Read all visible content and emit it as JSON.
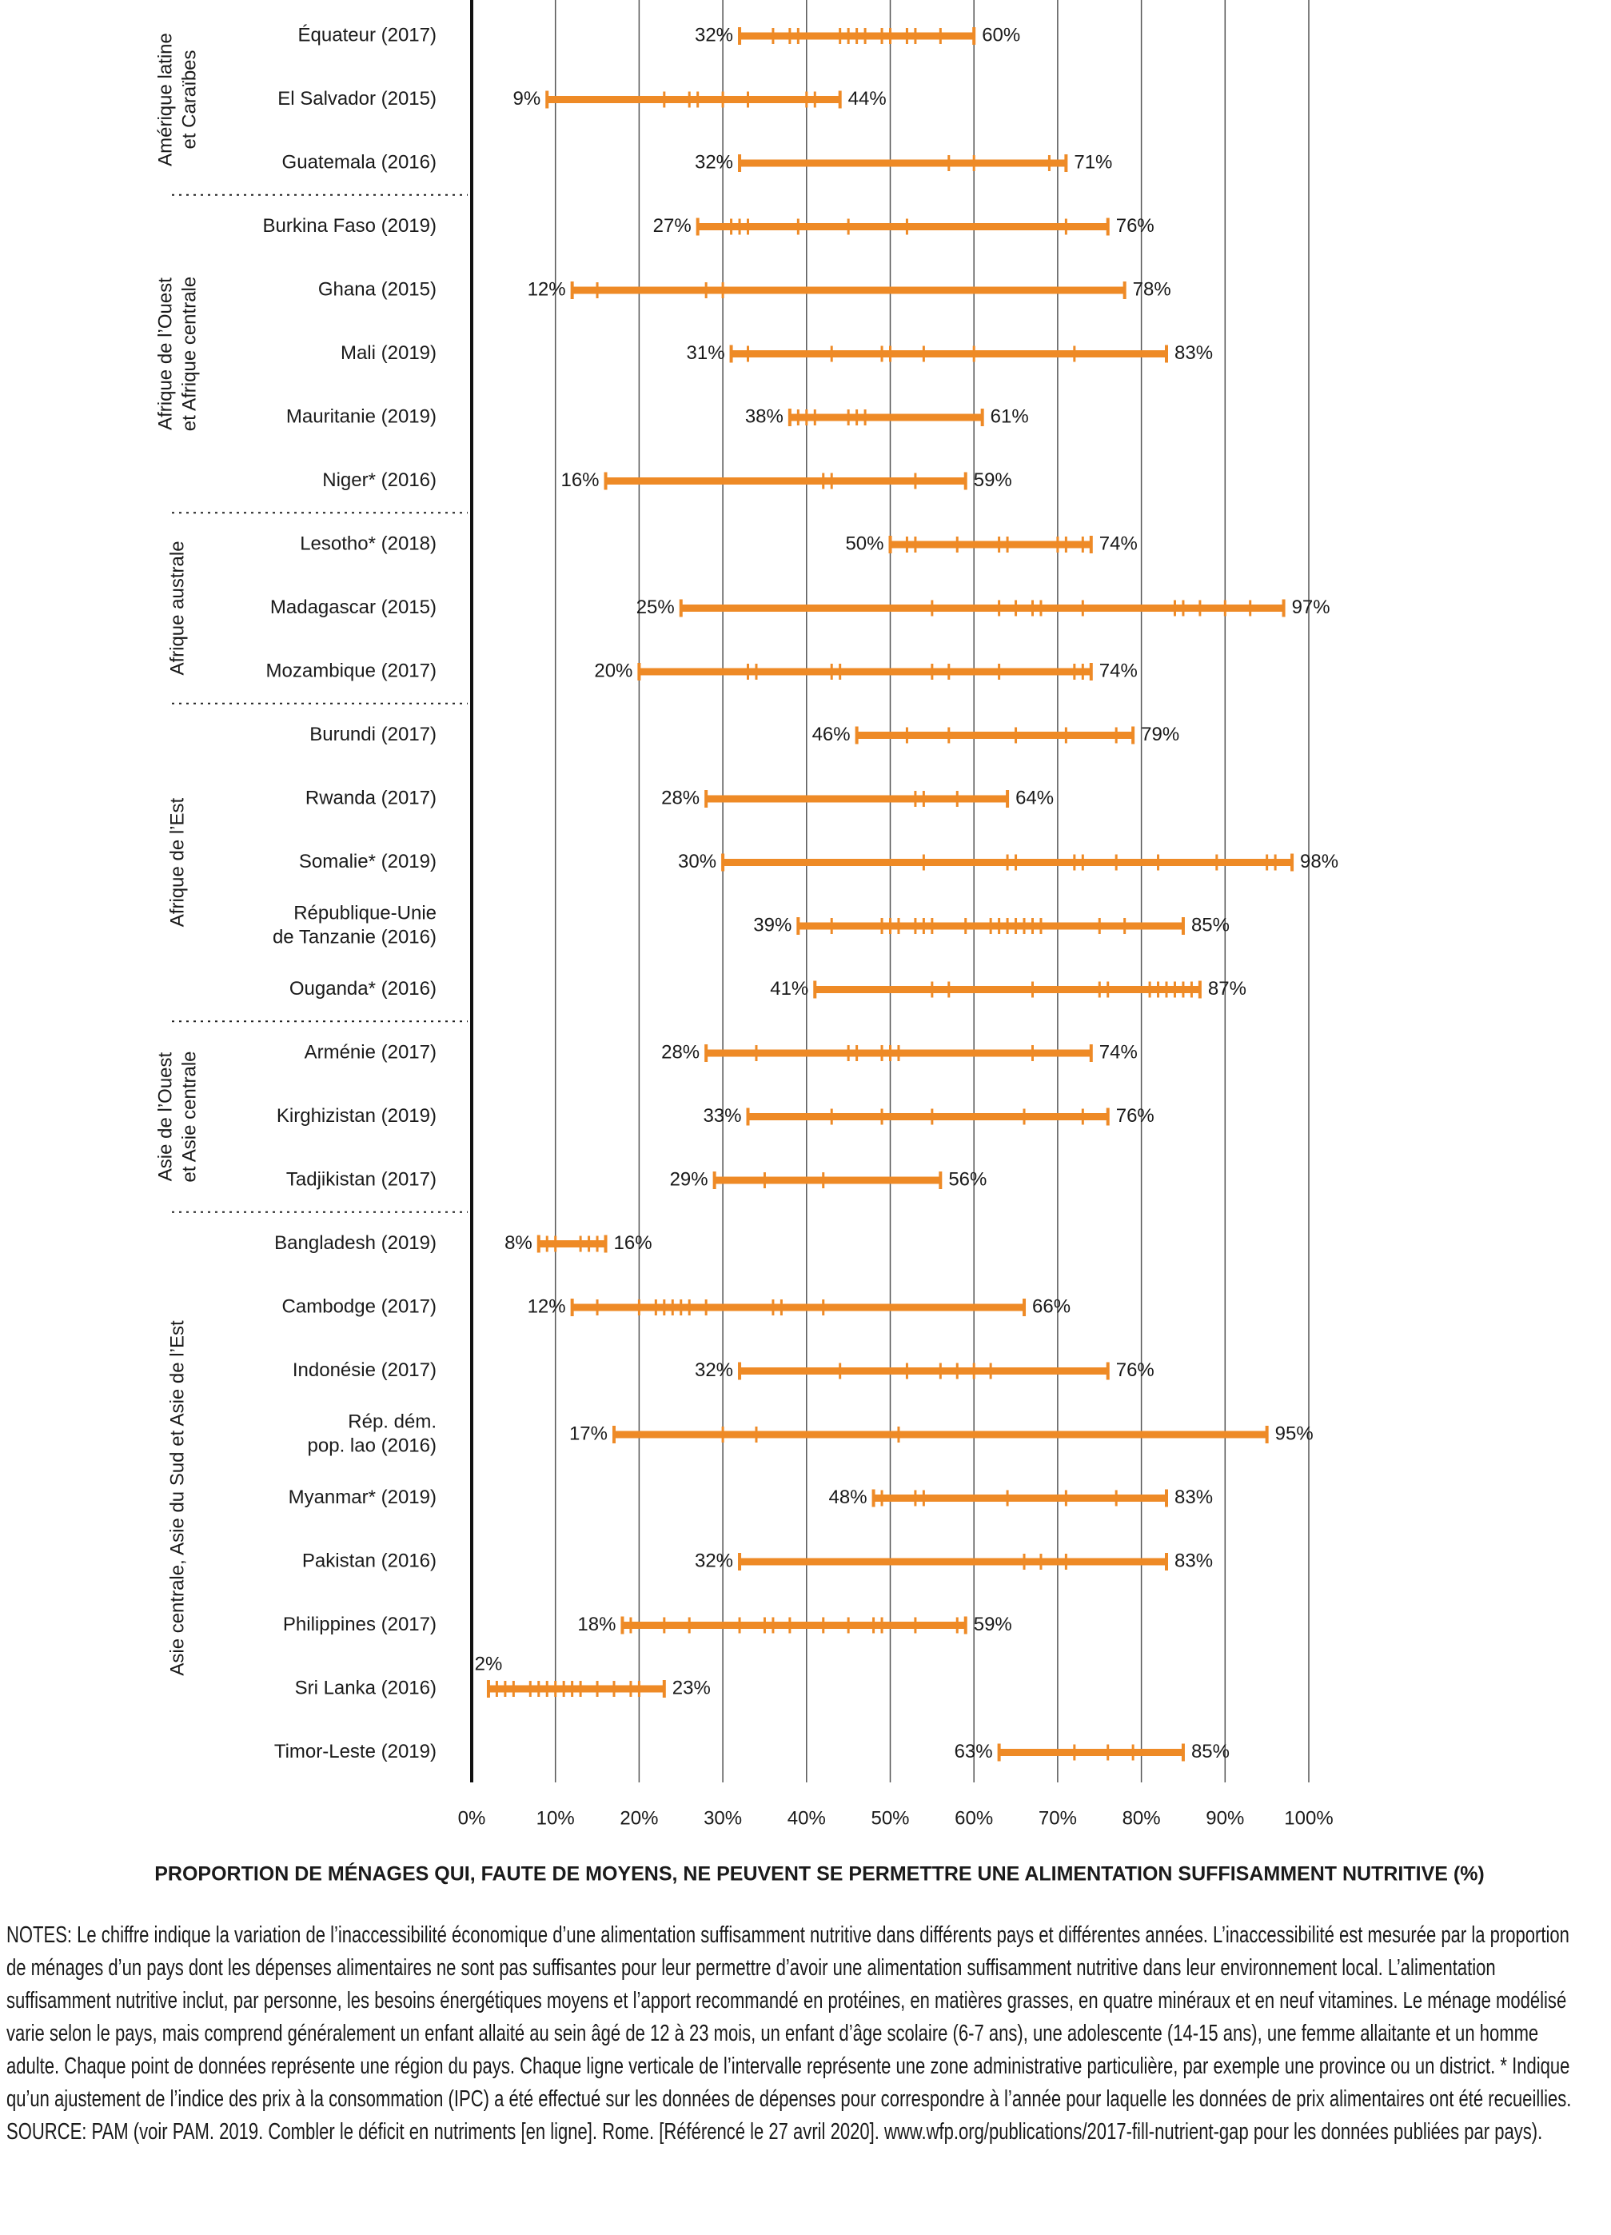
{
  "chart_data": {
    "type": "range",
    "xlabel": "PROPORTION DE MÉNAGES QUI, FAUTE DE MOYENS, NE PEUVENT SE PERMETTRE UNE ALIMENTATION SUFFISAMMENT NUTRITIVE (%)",
    "xlim": [
      0,
      100
    ],
    "xticks": [
      {
        "value": 0,
        "label": "0%"
      },
      {
        "value": 10,
        "label": "10%"
      },
      {
        "value": 20,
        "label": "20%"
      },
      {
        "value": 30,
        "label": "30%"
      },
      {
        "value": 40,
        "label": "40%"
      },
      {
        "value": 50,
        "label": "50%"
      },
      {
        "value": 60,
        "label": "60%"
      },
      {
        "value": 70,
        "label": "70%"
      },
      {
        "value": 80,
        "label": "80%"
      },
      {
        "value": 90,
        "label": "90%"
      },
      {
        "value": 100,
        "label": "100%"
      }
    ],
    "grid": true,
    "color": "#ee8a26",
    "groups": [
      {
        "name": [
          "Amérique latine",
          "et Caraïbes"
        ],
        "rows": [
          {
            "label": "Équateur (2017)",
            "values": [
              32,
              60
            ],
            "value_labels": [
              "32%",
              "60%"
            ],
            "ticks": [
              36,
              38,
              39,
              44,
              45,
              46,
              47,
              49,
              50,
              52,
              53,
              56
            ]
          },
          {
            "label": "El Salvador (2015)",
            "values": [
              9,
              44
            ],
            "value_labels": [
              "9%",
              "44%"
            ],
            "ticks": [
              23,
              26,
              27,
              30,
              33,
              40,
              41
            ]
          },
          {
            "label": "Guatemala (2016)",
            "values": [
              32,
              71
            ],
            "value_labels": [
              "32%",
              "71%"
            ],
            "ticks": [
              57,
              60,
              69
            ]
          }
        ]
      },
      {
        "name": [
          "Afrique de l’Ouest",
          "et Afrique centrale"
        ],
        "rows": [
          {
            "label": "Burkina Faso (2019)",
            "values": [
              27,
              76
            ],
            "value_labels": [
              "27%",
              "76%"
            ],
            "ticks": [
              31,
              32,
              33,
              39,
              45,
              52,
              71
            ]
          },
          {
            "label": "Ghana (2015)",
            "values": [
              12,
              78
            ],
            "value_labels": [
              "12%",
              "78%"
            ],
            "ticks": [
              15,
              28,
              30
            ]
          },
          {
            "label": "Mali (2019)",
            "values": [
              31,
              83
            ],
            "value_labels": [
              "31%",
              "83%"
            ],
            "ticks": [
              33,
              43,
              49,
              50,
              54,
              60,
              72
            ]
          },
          {
            "label": "Mauritanie (2019)",
            "values": [
              38,
              61
            ],
            "value_labels": [
              "38%",
              "61%"
            ],
            "ticks": [
              39,
              40,
              41,
              45,
              46,
              47
            ]
          },
          {
            "label": "Niger* (2016)",
            "values": [
              16,
              59
            ],
            "value_labels": [
              "16%",
              "59%"
            ],
            "ticks": [
              42,
              43,
              53
            ]
          }
        ]
      },
      {
        "name": [
          "Afrique australe"
        ],
        "rows": [
          {
            "label": "Lesotho* (2018)",
            "values": [
              50,
              74
            ],
            "value_labels": [
              "50%",
              "74%"
            ],
            "ticks": [
              52,
              53,
              58,
              63,
              64,
              70,
              71,
              73
            ]
          },
          {
            "label": "Madagascar (2015)",
            "values": [
              25,
              97
            ],
            "value_labels": [
              "25%",
              "97%"
            ],
            "ticks": [
              55,
              63,
              65,
              67,
              68,
              73,
              84,
              85,
              87,
              90,
              93
            ]
          },
          {
            "label": "Mozambique (2017)",
            "values": [
              20,
              74
            ],
            "value_labels": [
              "20%",
              "74%"
            ],
            "ticks": [
              33,
              34,
              43,
              44,
              55,
              57,
              63,
              72,
              73
            ]
          }
        ]
      },
      {
        "name": [
          "Afrique de l’Est"
        ],
        "rows": [
          {
            "label": "Burundi (2017)",
            "values": [
              46,
              79
            ],
            "value_labels": [
              "46%",
              "79%"
            ],
            "ticks": [
              52,
              57,
              65,
              71,
              77
            ]
          },
          {
            "label": "Rwanda (2017)",
            "values": [
              28,
              64
            ],
            "value_labels": [
              "28%",
              "64%"
            ],
            "ticks": [
              53,
              54,
              58
            ]
          },
          {
            "label": "Somalie* (2019)",
            "values": [
              30,
              98
            ],
            "value_labels": [
              "30%",
              "98%"
            ],
            "ticks": [
              54,
              64,
              65,
              72,
              73,
              77,
              82,
              89,
              95,
              96
            ]
          },
          {
            "label": [
              "République-Unie",
              "de Tanzanie  (2016)"
            ],
            "values": [
              39,
              85
            ],
            "value_labels": [
              "39%",
              "85%"
            ],
            "ticks": [
              43,
              49,
              50,
              51,
              53,
              54,
              55,
              59,
              62,
              63,
              64,
              65,
              66,
              67,
              68,
              75,
              78
            ]
          },
          {
            "label": "Ouganda* (2016)",
            "values": [
              41,
              87
            ],
            "value_labels": [
              "41%",
              "87%"
            ],
            "ticks": [
              55,
              57,
              67,
              75,
              76,
              81,
              82,
              83,
              84,
              85,
              86
            ]
          }
        ]
      },
      {
        "name": [
          "Asie de l’Ouest",
          "et Asie centrale"
        ],
        "rows": [
          {
            "label": "Arménie (2017)",
            "values": [
              28,
              74
            ],
            "value_labels": [
              "28%",
              "74%"
            ],
            "ticks": [
              34,
              45,
              46,
              49,
              50,
              51,
              67
            ]
          },
          {
            "label": "Kirghizistan (2019)",
            "values": [
              33,
              76
            ],
            "value_labels": [
              "33%",
              "76%"
            ],
            "ticks": [
              43,
              49,
              55,
              66,
              73
            ]
          },
          {
            "label": "Tadjikistan (2017)",
            "values": [
              29,
              56
            ],
            "value_labels": [
              "29%",
              "56%"
            ],
            "ticks": [
              35,
              42
            ]
          }
        ]
      },
      {
        "name": [
          "Asie centrale, Asie du Sud et Asie de l’Est"
        ],
        "rows": [
          {
            "label": "Bangladesh (2019)",
            "values": [
              8,
              16
            ],
            "value_labels": [
              "8%",
              "16%"
            ],
            "ticks": [
              9,
              10,
              13,
              14,
              15
            ]
          },
          {
            "label": "Cambodge (2017)",
            "values": [
              12,
              66
            ],
            "value_labels": [
              "12%",
              "66%"
            ],
            "ticks": [
              15,
              20,
              22,
              23,
              24,
              25,
              26,
              28,
              36,
              37,
              42
            ]
          },
          {
            "label": "Indonésie (2017)",
            "values": [
              32,
              76
            ],
            "value_labels": [
              "32%",
              "76%"
            ],
            "ticks": [
              44,
              52,
              56,
              58,
              60,
              62
            ]
          },
          {
            "label": [
              "Rép. dém.",
              "pop. lao (2016)"
            ],
            "values": [
              17,
              95
            ],
            "value_labels": [
              "17%",
              "95%"
            ],
            "ticks": [
              30,
              34,
              51
            ]
          },
          {
            "label": "Myanmar* (2019)",
            "values": [
              48,
              83
            ],
            "value_labels": [
              "48%",
              "83%"
            ],
            "ticks": [
              49,
              53,
              54,
              64,
              71,
              77
            ]
          },
          {
            "label": "Pakistan (2016)",
            "values": [
              32,
              83
            ],
            "value_labels": [
              "32%",
              "83%"
            ],
            "ticks": [
              66,
              68,
              71
            ]
          },
          {
            "label": "Philippines (2017)",
            "values": [
              18,
              59
            ],
            "value_labels": [
              "18%",
              "59%"
            ],
            "ticks": [
              19,
              23,
              26,
              32,
              35,
              36,
              38,
              42,
              45,
              48,
              49,
              53,
              58
            ]
          },
          {
            "label": "Sri Lanka (2016)",
            "values": [
              2,
              23
            ],
            "value_labels": [
              "2%",
              "23%"
            ],
            "ticks": [
              3,
              4,
              5,
              7,
              8,
              9,
              10,
              11,
              12,
              13,
              15,
              17,
              19,
              20
            ]
          },
          {
            "label": "Timor-Leste (2019)",
            "values": [
              63,
              85
            ],
            "value_labels": [
              "63%",
              "85%"
            ],
            "ticks": [
              72,
              76,
              79
            ]
          }
        ]
      }
    ]
  },
  "notes": "NOTES: Le chiffre indique la variation de l’inaccessibilité économique d’une alimentation suffisamment nutritive dans différents pays et différentes années. L’inaccessibilité est mesurée par la proportion de ménages d’un pays dont les dépenses alimentaires ne sont pas suffisantes pour leur permettre d’avoir une alimentation suffisamment nutritive dans leur environnement local. L’alimentation suffisamment nutritive inclut, par personne, les besoins énergétiques moyens et l’apport recommandé en protéines, en matières grasses, en quatre minéraux et en neuf vitamines. Le ménage modélisé varie selon le pays, mais comprend généralement un enfant allaité au sein âgé de 12 à 23 mois, un enfant d’âge scolaire (6-7 ans), une adolescente (14-15 ans), une femme allaitante et un homme adulte. Chaque point de données représente une région du pays. Chaque ligne verticale de l’intervalle représente une zone administrative particulière, par exemple une province ou un district. * Indique qu’un ajustement de l’indice des prix à la consommation (IPC) a été effectué sur les données de dépenses pour correspondre à l’année pour laquelle les données de prix alimentaires ont été recueillies.",
  "source": "SOURCE: PAM (voir PAM. 2019. Combler le déficit en nutriments [en ligne]. Rome. [Référencé le 27 avril 2020]. www.wfp.org/publications/2017-fill-nutrient-gap pour les données publiées par pays)."
}
